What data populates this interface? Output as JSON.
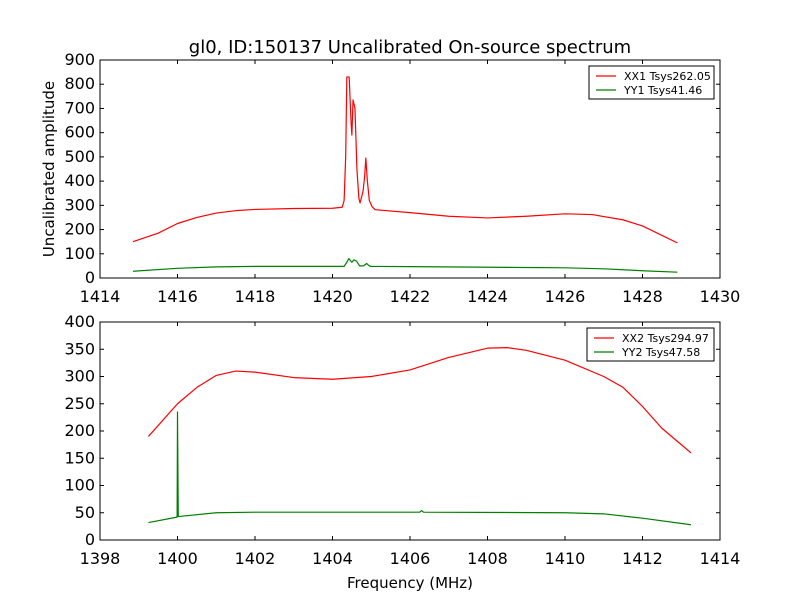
{
  "chart_data": [
    {
      "type": "line",
      "title": "gl0, ID:150137 Uncalibrated On-source spectrum",
      "xlabel": "",
      "ylabel": "Uncalibrated amplitude",
      "xlim": [
        1414,
        1430
      ],
      "ylim": [
        0,
        900
      ],
      "xticks": [
        1414,
        1416,
        1418,
        1420,
        1422,
        1424,
        1426,
        1428,
        1430
      ],
      "yticks": [
        0,
        100,
        200,
        300,
        400,
        500,
        600,
        700,
        800,
        900
      ],
      "legend_position": "top-right",
      "series": [
        {
          "name": "XX1 Tsys262.05",
          "color": "#ff0000",
          "points": [
            [
              1414.85,
              150
            ],
            [
              1415.5,
              185
            ],
            [
              1416,
              225
            ],
            [
              1416.5,
              250
            ],
            [
              1417,
              268
            ],
            [
              1417.5,
              278
            ],
            [
              1418,
              283
            ],
            [
              1419,
              287
            ],
            [
              1420,
              288
            ],
            [
              1420.25,
              292
            ],
            [
              1420.3,
              320
            ],
            [
              1420.34,
              500
            ],
            [
              1420.37,
              830
            ],
            [
              1420.43,
              830
            ],
            [
              1420.48,
              640
            ],
            [
              1420.5,
              590
            ],
            [
              1420.53,
              735
            ],
            [
              1420.58,
              700
            ],
            [
              1420.63,
              450
            ],
            [
              1420.68,
              330
            ],
            [
              1420.71,
              310
            ],
            [
              1420.76,
              340
            ],
            [
              1420.79,
              360
            ],
            [
              1420.83,
              420
            ],
            [
              1420.86,
              495
            ],
            [
              1420.9,
              400
            ],
            [
              1420.95,
              320
            ],
            [
              1421.02,
              295
            ],
            [
              1421.1,
              282
            ],
            [
              1422,
              270
            ],
            [
              1423,
              255
            ],
            [
              1424,
              248
            ],
            [
              1425,
              255
            ],
            [
              1426,
              265
            ],
            [
              1426.7,
              262
            ],
            [
              1427.5,
              240
            ],
            [
              1428,
              215
            ],
            [
              1428.9,
              145
            ]
          ]
        },
        {
          "name": "YY1 Tsys41.46",
          "color": "#008000",
          "points": [
            [
              1414.85,
              28
            ],
            [
              1416,
              40
            ],
            [
              1417,
              46
            ],
            [
              1418,
              48
            ],
            [
              1420.3,
              48
            ],
            [
              1420.37,
              65
            ],
            [
              1420.42,
              80
            ],
            [
              1420.5,
              65
            ],
            [
              1420.55,
              75
            ],
            [
              1420.62,
              70
            ],
            [
              1420.7,
              50
            ],
            [
              1420.8,
              50
            ],
            [
              1420.88,
              60
            ],
            [
              1420.95,
              50
            ],
            [
              1421,
              48
            ],
            [
              1422,
              47
            ],
            [
              1426,
              42
            ],
            [
              1427,
              38
            ],
            [
              1428,
              30
            ],
            [
              1428.9,
              24
            ]
          ]
        }
      ]
    },
    {
      "type": "line",
      "title": "",
      "xlabel": "Frequency (MHz)",
      "ylabel": "",
      "xlim": [
        1398,
        1414
      ],
      "ylim": [
        0,
        400
      ],
      "xticks": [
        1398,
        1400,
        1402,
        1404,
        1406,
        1408,
        1410,
        1412,
        1414
      ],
      "yticks": [
        0,
        50,
        100,
        150,
        200,
        250,
        300,
        350,
        400
      ],
      "legend_position": "top-right",
      "series": [
        {
          "name": "XX2 Tsys294.97",
          "color": "#ff0000",
          "points": [
            [
              1399.25,
              190
            ],
            [
              1400,
              250
            ],
            [
              1400.5,
              280
            ],
            [
              1401,
              302
            ],
            [
              1401.5,
              310
            ],
            [
              1402,
              308
            ],
            [
              1403,
              298
            ],
            [
              1404,
              295
            ],
            [
              1405,
              300
            ],
            [
              1406,
              312
            ],
            [
              1407,
              335
            ],
            [
              1408,
              352
            ],
            [
              1408.5,
              353
            ],
            [
              1409,
              348
            ],
            [
              1410,
              330
            ],
            [
              1411,
              300
            ],
            [
              1411.5,
              280
            ],
            [
              1412,
              245
            ],
            [
              1412.5,
              205
            ],
            [
              1413,
              175
            ],
            [
              1413.25,
              160
            ]
          ]
        },
        {
          "name": "YY2 Tsys47.58",
          "color": "#008000",
          "points": [
            [
              1399.25,
              32
            ],
            [
              1399.99,
              42
            ],
            [
              1400,
              235
            ],
            [
              1400.02,
              43
            ],
            [
              1401,
              50
            ],
            [
              1402,
              51
            ],
            [
              1406.25,
              51
            ],
            [
              1406.3,
              54
            ],
            [
              1406.35,
              51
            ],
            [
              1410,
              50
            ],
            [
              1411,
              48
            ],
            [
              1412,
              40
            ],
            [
              1413.25,
              28
            ]
          ]
        }
      ]
    }
  ]
}
